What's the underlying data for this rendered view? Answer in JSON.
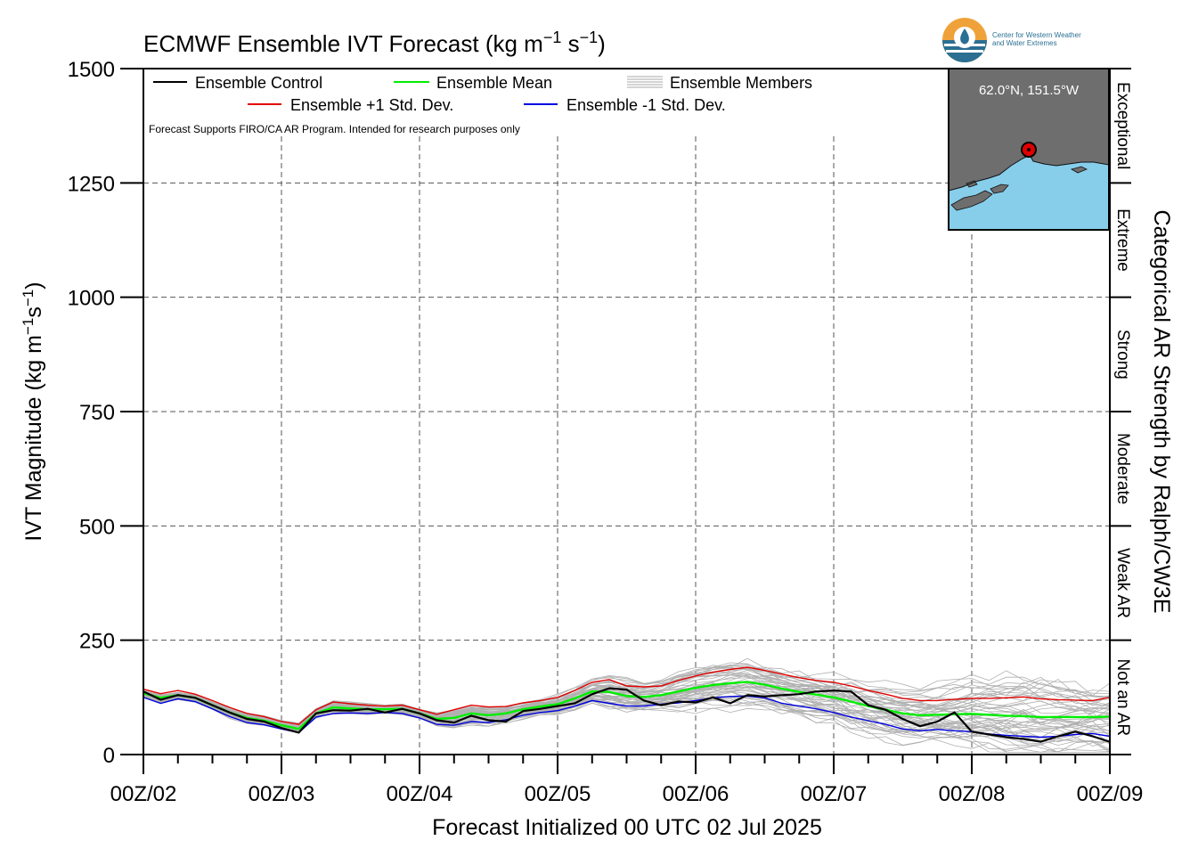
{
  "chart_data": {
    "type": "line",
    "title": "ECMWF Ensemble IVT Forecast (kg m",
    "title_sup1": "−1",
    "title_mid": " s",
    "title_sup2": "−1",
    "title_end": ")",
    "ylabel_main": "IVT Magnitude (kg m",
    "ylabel_sup1": "−1",
    "ylabel_mid": "s",
    "ylabel_sup2": "−1",
    "ylabel_end": ")",
    "xlabel": "Forecast Initialized 00 UTC 02 Jul 2025",
    "right_axis_label": "Categorical AR Strength by Ralph/CW3E",
    "ylim": [
      0,
      1500
    ],
    "yticks": [
      "0",
      "250",
      "500",
      "750",
      "1000",
      "1250",
      "1500"
    ],
    "ytick_values": [
      0,
      250,
      500,
      750,
      1000,
      1250,
      1500
    ],
    "xlim_hours": [
      0,
      168
    ],
    "xticks": [
      "00Z/02",
      "00Z/03",
      "00Z/04",
      "00Z/05",
      "00Z/06",
      "00Z/07",
      "00Z/08",
      "00Z/09"
    ],
    "xtick_hours": [
      0,
      24,
      48,
      72,
      96,
      120,
      144,
      168
    ],
    "grid": true,
    "legend_position": "top-left",
    "categories_right": [
      {
        "label": "Not an AR",
        "min": 0,
        "max": 250
      },
      {
        "label": "Weak AR",
        "min": 250,
        "max": 500
      },
      {
        "label": "Moderate",
        "min": 500,
        "max": 750
      },
      {
        "label": "Strong",
        "min": 750,
        "max": 1000
      },
      {
        "label": "Extreme",
        "min": 1000,
        "max": 1250
      },
      {
        "label": "Exceptional",
        "min": 1250,
        "max": 1500
      }
    ],
    "legend": [
      {
        "name": "Ensemble Control",
        "color": "#000000"
      },
      {
        "name": "Ensemble Mean",
        "color": "#00ee00"
      },
      {
        "name": "Ensemble Members",
        "color": "#a9a9a9"
      },
      {
        "name": "Ensemble +1 Std. Dev.",
        "color": "#e00000"
      },
      {
        "name": "Ensemble -1 Std. Dev.",
        "color": "#0000e0"
      }
    ],
    "annotation": "Forecast Supports FIRO/CA AR Program. Intended for research purposes only",
    "inset_location": "62.0°N, 151.5°W",
    "series": [
      {
        "name": "Ensemble +1 Std. Dev.",
        "color": "#e00000",
        "x": [
          0,
          3,
          6,
          9,
          12,
          15,
          18,
          21,
          24,
          27,
          30,
          33,
          36,
          39,
          42,
          45,
          48,
          51,
          54,
          57,
          60,
          63,
          66,
          69,
          72,
          75,
          78,
          81,
          84,
          87,
          90,
          93,
          96,
          99,
          102,
          105,
          108,
          111,
          114,
          117,
          120,
          123,
          126,
          129,
          132,
          135,
          138,
          141,
          144,
          147,
          150,
          153,
          156,
          159,
          162,
          165,
          168
        ],
        "y": [
          143,
          133,
          140,
          132,
          118,
          103,
          90,
          83,
          72,
          66,
          98,
          115,
          111,
          108,
          106,
          108,
          98,
          88,
          98,
          108,
          104,
          105,
          113,
          118,
          125,
          140,
          158,
          164,
          150,
          148,
          150,
          162,
          172,
          180,
          186,
          191,
          184,
          176,
          168,
          162,
          158,
          150,
          140,
          132,
          123,
          118,
          118,
          121,
          123,
          123,
          124,
          126,
          122,
          120,
          119,
          118,
          125
        ]
      },
      {
        "name": "Ensemble -1 Std. Dev.",
        "color": "#0000e0",
        "x": [
          0,
          3,
          6,
          9,
          12,
          15,
          18,
          21,
          24,
          27,
          30,
          33,
          36,
          39,
          42,
          45,
          48,
          51,
          54,
          57,
          60,
          63,
          66,
          69,
          72,
          75,
          78,
          81,
          84,
          87,
          90,
          93,
          96,
          99,
          102,
          105,
          108,
          111,
          114,
          117,
          120,
          123,
          126,
          129,
          132,
          135,
          138,
          141,
          144,
          147,
          150,
          153,
          156,
          159,
          162,
          165,
          168
        ],
        "y": [
          125,
          112,
          122,
          116,
          100,
          83,
          70,
          65,
          56,
          48,
          82,
          90,
          91,
          90,
          92,
          90,
          80,
          66,
          64,
          72,
          70,
          76,
          86,
          92,
          96,
          106,
          118,
          112,
          106,
          106,
          110,
          113,
          118,
          124,
          127,
          128,
          124,
          112,
          106,
          100,
          92,
          82,
          74,
          66,
          56,
          52,
          55,
          52,
          50,
          45,
          42,
          40,
          38,
          40,
          44,
          46,
          40
        ]
      },
      {
        "name": "Ensemble Mean",
        "color": "#00ee00",
        "x": [
          0,
          3,
          6,
          9,
          12,
          15,
          18,
          21,
          24,
          27,
          30,
          33,
          36,
          39,
          42,
          45,
          48,
          51,
          54,
          57,
          60,
          63,
          66,
          69,
          72,
          75,
          78,
          81,
          84,
          87,
          90,
          93,
          96,
          99,
          102,
          105,
          108,
          111,
          114,
          117,
          120,
          123,
          126,
          129,
          132,
          135,
          138,
          141,
          144,
          147,
          150,
          153,
          156,
          159,
          162,
          165,
          168
        ],
        "y": [
          134,
          124,
          130,
          124,
          108,
          92,
          80,
          74,
          64,
          56,
          90,
          103,
          101,
          99,
          99,
          100,
          90,
          78,
          80,
          90,
          86,
          90,
          99,
          105,
          110,
          123,
          138,
          137,
          128,
          126,
          130,
          138,
          146,
          152,
          156,
          159,
          153,
          144,
          137,
          131,
          125,
          116,
          106,
          98,
          90,
          86,
          87,
          88,
          89,
          87,
          85,
          84,
          82,
          82,
          82,
          82,
          83
        ]
      },
      {
        "name": "Ensemble Control",
        "color": "#000000",
        "x": [
          0,
          3,
          6,
          9,
          12,
          15,
          18,
          21,
          24,
          27,
          30,
          33,
          36,
          39,
          42,
          45,
          48,
          51,
          54,
          57,
          60,
          63,
          66,
          69,
          72,
          75,
          78,
          81,
          84,
          87,
          90,
          93,
          96,
          99,
          102,
          105,
          108,
          111,
          114,
          117,
          120,
          123,
          126,
          129,
          132,
          135,
          138,
          141,
          144,
          147,
          150,
          153,
          156,
          159,
          162,
          165,
          168
        ],
        "y": [
          138,
          120,
          130,
          124,
          108,
          92,
          78,
          72,
          58,
          48,
          90,
          97,
          96,
          100,
          92,
          100,
          90,
          75,
          70,
          85,
          75,
          72,
          95,
          100,
          106,
          112,
          132,
          145,
          142,
          118,
          108,
          116,
          114,
          125,
          112,
          130,
          127,
          130,
          132,
          138,
          140,
          138,
          108,
          98,
          78,
          62,
          72,
          92,
          50,
          44,
          38,
          34,
          28,
          40,
          50,
          40,
          28
        ]
      }
    ]
  }
}
